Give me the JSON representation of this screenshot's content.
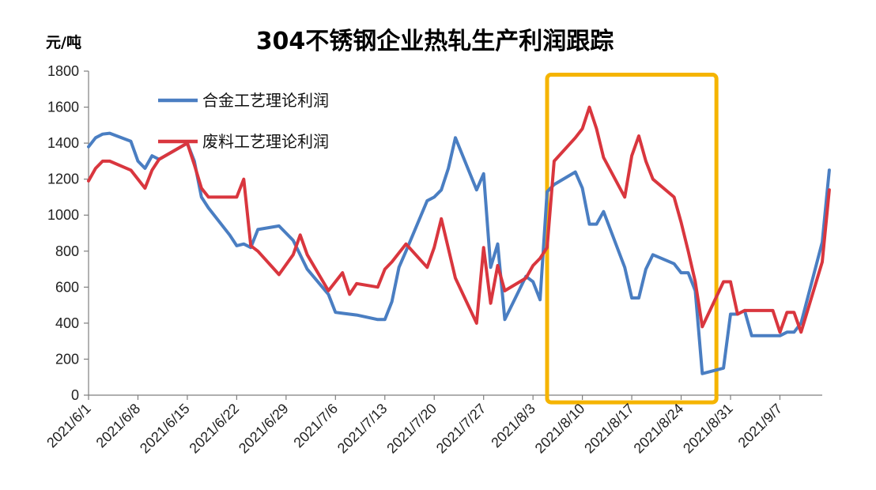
{
  "chart_data": {
    "type": "line",
    "title": "304不锈钢企业热轧生产利润跟踪",
    "ylabel": "元/吨",
    "ylim": [
      0,
      1800
    ],
    "yticks": [
      0,
      200,
      400,
      600,
      800,
      1000,
      1200,
      1400,
      1600,
      1800
    ],
    "xticks": [
      "2021/6/1",
      "2021/6/8",
      "2021/6/15",
      "2021/6/22",
      "2021/6/29",
      "2021/7/6",
      "2021/7/13",
      "2021/7/20",
      "2021/7/27",
      "2021/8/3",
      "2021/8/10",
      "2021/8/17",
      "2021/8/24",
      "2021/8/31",
      "2021/9/7"
    ],
    "grid": false,
    "legend_position": "top-left",
    "series": [
      {
        "name": "合金工艺理论利润",
        "color": "#4a7ec2",
        "points": [
          [
            "2021-06-01",
            1380
          ],
          [
            "2021-06-02",
            1430
          ],
          [
            "2021-06-03",
            1450
          ],
          [
            "2021-06-04",
            1455
          ],
          [
            "2021-06-07",
            1410
          ],
          [
            "2021-06-08",
            1300
          ],
          [
            "2021-06-09",
            1260
          ],
          [
            "2021-06-10",
            1330
          ],
          [
            "2021-06-11",
            1310
          ],
          [
            "2021-06-15",
            1400
          ],
          [
            "2021-06-16",
            1300
          ],
          [
            "2021-06-17",
            1100
          ],
          [
            "2021-06-18",
            1040
          ],
          [
            "2021-06-21",
            890
          ],
          [
            "2021-06-22",
            830
          ],
          [
            "2021-06-23",
            840
          ],
          [
            "2021-06-24",
            820
          ],
          [
            "2021-06-25",
            920
          ],
          [
            "2021-06-28",
            940
          ],
          [
            "2021-06-30",
            860
          ],
          [
            "2021-07-02",
            700
          ],
          [
            "2021-07-05",
            560
          ],
          [
            "2021-07-06",
            460
          ],
          [
            "2021-07-07",
            455
          ],
          [
            "2021-07-09",
            445
          ],
          [
            "2021-07-12",
            420
          ],
          [
            "2021-07-13",
            420
          ],
          [
            "2021-07-14",
            520
          ],
          [
            "2021-07-15",
            710
          ],
          [
            "2021-07-16",
            800
          ],
          [
            "2021-07-19",
            1080
          ],
          [
            "2021-07-20",
            1100
          ],
          [
            "2021-07-21",
            1140
          ],
          [
            "2021-07-22",
            1260
          ],
          [
            "2021-07-23",
            1430
          ],
          [
            "2021-07-26",
            1140
          ],
          [
            "2021-07-27",
            1230
          ],
          [
            "2021-07-28",
            710
          ],
          [
            "2021-07-29",
            840
          ],
          [
            "2021-07-30",
            420
          ],
          [
            "2021-08-02",
            660
          ],
          [
            "2021-08-03",
            630
          ],
          [
            "2021-08-04",
            530
          ],
          [
            "2021-08-05",
            1130
          ],
          [
            "2021-08-06",
            1170
          ],
          [
            "2021-08-09",
            1240
          ],
          [
            "2021-08-10",
            1150
          ],
          [
            "2021-08-11",
            950
          ],
          [
            "2021-08-12",
            950
          ],
          [
            "2021-08-13",
            1020
          ],
          [
            "2021-08-16",
            710
          ],
          [
            "2021-08-17",
            540
          ],
          [
            "2021-08-18",
            540
          ],
          [
            "2021-08-19",
            700
          ],
          [
            "2021-08-20",
            780
          ],
          [
            "2021-08-23",
            730
          ],
          [
            "2021-08-24",
            680
          ],
          [
            "2021-08-25",
            680
          ],
          [
            "2021-08-26",
            580
          ],
          [
            "2021-08-27",
            120
          ],
          [
            "2021-08-30",
            150
          ],
          [
            "2021-08-31",
            450
          ],
          [
            "2021-09-01",
            450
          ],
          [
            "2021-09-02",
            470
          ],
          [
            "2021-09-03",
            330
          ],
          [
            "2021-09-06",
            330
          ],
          [
            "2021-09-07",
            330
          ],
          [
            "2021-09-08",
            350
          ],
          [
            "2021-09-09",
            350
          ],
          [
            "2021-09-10",
            400
          ],
          [
            "2021-09-13",
            850
          ],
          [
            "2021-09-14",
            1250
          ]
        ]
      },
      {
        "name": "废料工艺理论利润",
        "color": "#d9363e",
        "points": [
          [
            "2021-06-01",
            1190
          ],
          [
            "2021-06-02",
            1260
          ],
          [
            "2021-06-03",
            1300
          ],
          [
            "2021-06-04",
            1300
          ],
          [
            "2021-06-07",
            1250
          ],
          [
            "2021-06-08",
            1200
          ],
          [
            "2021-06-09",
            1150
          ],
          [
            "2021-06-10",
            1250
          ],
          [
            "2021-06-11",
            1310
          ],
          [
            "2021-06-15",
            1400
          ],
          [
            "2021-06-16",
            1280
          ],
          [
            "2021-06-17",
            1150
          ],
          [
            "2021-06-18",
            1100
          ],
          [
            "2021-06-21",
            1100
          ],
          [
            "2021-06-22",
            1100
          ],
          [
            "2021-06-23",
            1200
          ],
          [
            "2021-06-24",
            830
          ],
          [
            "2021-06-25",
            800
          ],
          [
            "2021-06-28",
            670
          ],
          [
            "2021-06-30",
            780
          ],
          [
            "2021-07-01",
            890
          ],
          [
            "2021-07-02",
            780
          ],
          [
            "2021-07-05",
            580
          ],
          [
            "2021-07-07",
            680
          ],
          [
            "2021-07-08",
            560
          ],
          [
            "2021-07-09",
            620
          ],
          [
            "2021-07-12",
            600
          ],
          [
            "2021-07-13",
            700
          ],
          [
            "2021-07-14",
            740
          ],
          [
            "2021-07-16",
            840
          ],
          [
            "2021-07-19",
            710
          ],
          [
            "2021-07-20",
            820
          ],
          [
            "2021-07-21",
            980
          ],
          [
            "2021-07-23",
            650
          ],
          [
            "2021-07-26",
            400
          ],
          [
            "2021-07-27",
            820
          ],
          [
            "2021-07-28",
            510
          ],
          [
            "2021-07-29",
            720
          ],
          [
            "2021-07-30",
            580
          ],
          [
            "2021-08-02",
            650
          ],
          [
            "2021-08-03",
            720
          ],
          [
            "2021-08-04",
            760
          ],
          [
            "2021-08-05",
            820
          ],
          [
            "2021-08-06",
            1300
          ],
          [
            "2021-08-09",
            1430
          ],
          [
            "2021-08-10",
            1480
          ],
          [
            "2021-08-11",
            1600
          ],
          [
            "2021-08-12",
            1480
          ],
          [
            "2021-08-13",
            1320
          ],
          [
            "2021-08-16",
            1100
          ],
          [
            "2021-08-17",
            1330
          ],
          [
            "2021-08-18",
            1440
          ],
          [
            "2021-08-19",
            1300
          ],
          [
            "2021-08-20",
            1200
          ],
          [
            "2021-08-23",
            1100
          ],
          [
            "2021-08-24",
            960
          ],
          [
            "2021-08-25",
            800
          ],
          [
            "2021-08-26",
            630
          ],
          [
            "2021-08-27",
            380
          ],
          [
            "2021-08-30",
            630
          ],
          [
            "2021-08-31",
            630
          ],
          [
            "2021-09-01",
            450
          ],
          [
            "2021-09-02",
            470
          ],
          [
            "2021-09-03",
            470
          ],
          [
            "2021-09-06",
            470
          ],
          [
            "2021-09-07",
            350
          ],
          [
            "2021-09-08",
            460
          ],
          [
            "2021-09-09",
            460
          ],
          [
            "2021-09-10",
            350
          ],
          [
            "2021-09-13",
            740
          ],
          [
            "2021-09-14",
            1140
          ]
        ]
      }
    ],
    "highlight": {
      "x_start": "2021-08-05",
      "x_end": "2021-08-29",
      "y_start": -40,
      "y_end": 1780,
      "color": "#f5b400"
    }
  }
}
